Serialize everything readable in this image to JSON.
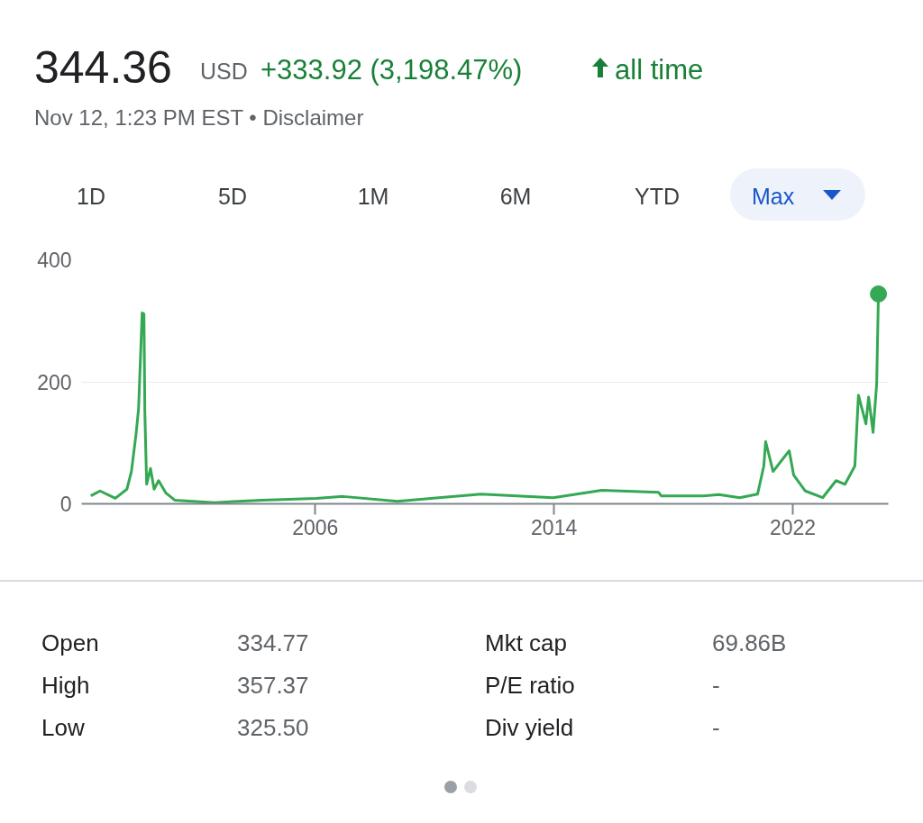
{
  "chart_data": {
    "type": "line",
    "title": "344.36",
    "subtitle": "Nov 12, 1:23 PM EST • Disclaimer",
    "annotations": [
      "USD",
      "+333.92 (3,198.47%)",
      "all time",
      "1D",
      "5D",
      "1M",
      "6M",
      "YTD",
      "Max",
      "Open",
      "334.77",
      "Mkt cap",
      "69.86B",
      "High",
      "357.37",
      "P/E ratio",
      "-",
      "Low",
      "325.50",
      "Div yield",
      "-"
    ],
    "xlim": [
      1998.17,
      2025.2
    ],
    "ylim": [
      0,
      400
    ],
    "xticks": [
      2006,
      2014,
      2022
    ],
    "yticks": [
      0,
      200,
      400
    ],
    "grid": "y",
    "series": [
      {
        "type": "line",
        "marker": "none",
        "color": "#34a853",
        "x": [
          1998.48,
          1998.79,
          1999.3,
          1999.69,
          1999.84,
          1999.99,
          2000.08,
          2000.2,
          2000.26,
          2000.29,
          2000.35,
          2000.48,
          2000.6,
          2000.75,
          2000.99,
          2001.29,
          2002.62,
          2004.22,
          2006.03,
          2006.94,
          2008.75,
          2011.55,
          2013.97,
          2015.6,
          2017.5,
          2017.59,
          2019.01,
          2019.52,
          2020.22,
          2020.82,
          2021.03,
          2021.09,
          2021.34,
          2021.64,
          2021.88,
          2022.03,
          2022.42,
          2023.0,
          2023.45,
          2023.75,
          2024.08,
          2024.2,
          2024.45,
          2024.54,
          2024.69,
          2024.81,
          2024.87
        ],
        "values": [
          13,
          21,
          9,
          24,
          53,
          112,
          156,
          313,
          311,
          150,
          32,
          58,
          24,
          38,
          18,
          6,
          2,
          6,
          9,
          12,
          4,
          16,
          10,
          22,
          19,
          13,
          13,
          15,
          10,
          16,
          62,
          102,
          53,
          72,
          87,
          47,
          21,
          10,
          38,
          32,
          62,
          178,
          131,
          175,
          117,
          196,
          344
        ]
      },
      {
        "type": "scatter",
        "marker": "circle",
        "color": "#34a853",
        "x": [
          2024.87
        ],
        "values": [
          344
        ]
      }
    ]
  }
}
